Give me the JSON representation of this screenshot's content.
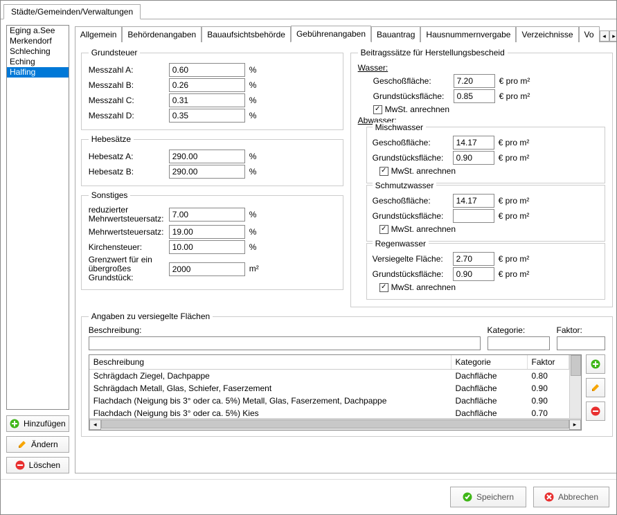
{
  "outerTab": "Städte/Gemeinden/Verwaltungen",
  "cities": [
    "Eging a.See",
    "Merkendorf",
    "Schleching",
    "Eching",
    "Halfing"
  ],
  "selectedCityIndex": 4,
  "leftButtons": {
    "add": "Hinzufügen",
    "edit": "Ändern",
    "del": "Löschen"
  },
  "innerTabs": [
    "Allgemein",
    "Behördenangaben",
    "Bauaufsichtsbehörde",
    "Gebührenangaben",
    "Bauantrag",
    "Hausnummernvergabe",
    "Verzeichnisse",
    "Vo"
  ],
  "activeInnerTab": 3,
  "grundsteuer": {
    "legend": "Grundsteuer",
    "rows": [
      {
        "label": "Messzahl A:",
        "value": "0.60",
        "unit": "%"
      },
      {
        "label": "Messzahl B:",
        "value": "0.26",
        "unit": "%"
      },
      {
        "label": "Messzahl C:",
        "value": "0.31",
        "unit": "%"
      },
      {
        "label": "Messzahl D:",
        "value": "0.35",
        "unit": "%"
      }
    ]
  },
  "hebesaetze": {
    "legend": "Hebesätze",
    "rows": [
      {
        "label": "Hebesatz A:",
        "value": "290.00",
        "unit": "%"
      },
      {
        "label": "Hebesatz B:",
        "value": "290.00",
        "unit": "%"
      }
    ]
  },
  "sonstiges": {
    "legend": "Sonstiges",
    "row1": {
      "label": "reduzierter Mehrwertsteuersatz:",
      "value": "7.00",
      "unit": "%"
    },
    "row2": {
      "label": "Mehrwertsteuersatz:",
      "value": "19.00",
      "unit": "%"
    },
    "row3": {
      "label": "Kirchensteuer:",
      "value": "10.00",
      "unit": "%"
    },
    "row4": {
      "label": "Grenzwert für ein übergroßes Grundstück:",
      "value": "2000",
      "unit": "m²"
    }
  },
  "beitrag": {
    "legend": "Beitragssätze für Herstellungsbescheid",
    "wasser": {
      "header": "Wasser:",
      "rows": [
        {
          "label": "Geschoßfläche:",
          "value": "7.20",
          "unit": "€ pro m²"
        },
        {
          "label": "Grundstücksfläche:",
          "value": "0.85",
          "unit": "€ pro m²"
        }
      ],
      "mwst": "MwSt. anrechnen",
      "mwst_checked": true
    },
    "abwasser_header": "Abwasser:",
    "mischwasser": {
      "legend": "Mischwasser",
      "rows": [
        {
          "label": "Geschoßfläche:",
          "value": "14.17",
          "unit": "€ pro m²"
        },
        {
          "label": "Grundstücksfläche:",
          "value": "0.90",
          "unit": "€ pro m²"
        }
      ],
      "mwst": "MwSt. anrechnen",
      "mwst_checked": true
    },
    "schmutzwasser": {
      "legend": "Schmutzwasser",
      "rows": [
        {
          "label": "Geschoßfläche:",
          "value": "14.17",
          "unit": "€ pro m²"
        },
        {
          "label": "Grundstücksfläche:",
          "value": "",
          "unit": "€ pro m²"
        }
      ],
      "mwst": "MwSt. anrechnen",
      "mwst_checked": true
    },
    "regenwasser": {
      "legend": "Regenwasser",
      "rows": [
        {
          "label": "Versiegelte Fläche:",
          "value": "2.70",
          "unit": "€ pro m²"
        },
        {
          "label": "Grundstücksfläche:",
          "value": "0.90",
          "unit": "€ pro m²"
        }
      ],
      "mwst": "MwSt. anrechnen",
      "mwst_checked": true
    }
  },
  "angaben": {
    "legend": "Angaben zu versiegelte Flächen",
    "labels": {
      "beschreibung": "Beschreibung:",
      "kategorie": "Kategorie:",
      "faktor": "Faktor:"
    },
    "inputs": {
      "beschreibung": "",
      "kategorie": "",
      "faktor": ""
    },
    "table": {
      "headers": {
        "beschreibung": "Beschreibung",
        "kategorie": "Kategorie",
        "faktor": "Faktor"
      },
      "rows": [
        {
          "b": "Schrägdach Ziegel, Dachpappe",
          "k": "Dachfläche",
          "f": "0.80"
        },
        {
          "b": "Schrägdach Metall, Glas, Schiefer, Faserzement",
          "k": "Dachfläche",
          "f": "0.90"
        },
        {
          "b": "Flachdach (Neigung bis 3° oder ca. 5%) Metall, Glas, Faserzement, Dachpappe",
          "k": "Dachfläche",
          "f": "0.90"
        },
        {
          "b": "Flachdach (Neigung bis 3° oder ca. 5%) Kies",
          "k": "Dachfläche",
          "f": "0.70"
        }
      ]
    }
  },
  "footer": {
    "save": "Speichern",
    "cancel": "Abbrechen"
  },
  "colors": {
    "selection": "#0078d7",
    "add_icon": "#3fb618",
    "edit_icon": "#f7a500",
    "del_icon": "#e83030",
    "save_icon": "#3fb618",
    "cancel_icon": "#e83030"
  }
}
